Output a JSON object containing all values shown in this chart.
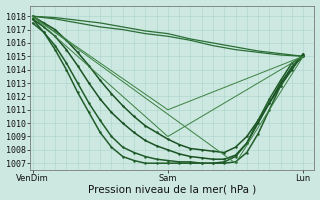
{
  "background_color": "#cce8e0",
  "grid_color": "#aad4cc",
  "ylabel_text": "Pression niveau de la mer( hPa )",
  "xtick_labels": [
    "VenDim",
    "Sam",
    "Lun"
  ],
  "xtick_positions": [
    0,
    48,
    96
  ],
  "ylim": [
    1006.5,
    1018.8
  ],
  "xlim": [
    -1,
    100
  ],
  "yticks": [
    1007,
    1008,
    1009,
    1010,
    1011,
    1012,
    1013,
    1014,
    1015,
    1016,
    1017,
    1018
  ],
  "lines": [
    {
      "x": [
        0,
        8,
        16,
        24,
        32,
        40,
        48,
        56,
        64,
        72,
        80,
        88,
        96
      ],
      "y": [
        1018.0,
        1017.8,
        1017.5,
        1017.2,
        1017.0,
        1016.7,
        1016.5,
        1016.2,
        1015.8,
        1015.5,
        1015.3,
        1015.1,
        1015.0
      ],
      "lw": 0.9,
      "marker": null,
      "ms": 0,
      "color": "#2a6e35"
    },
    {
      "x": [
        0,
        8,
        16,
        24,
        32,
        40,
        48,
        56,
        64,
        72,
        80,
        88,
        96
      ],
      "y": [
        1018.0,
        1017.9,
        1017.7,
        1017.5,
        1017.2,
        1016.9,
        1016.7,
        1016.3,
        1016.0,
        1015.7,
        1015.4,
        1015.2,
        1015.0
      ],
      "lw": 0.9,
      "marker": null,
      "ms": 0,
      "color": "#2a6e35"
    },
    {
      "x": [
        0,
        4,
        8,
        12,
        16,
        20,
        24,
        28,
        32,
        36,
        40,
        44,
        48,
        52,
        56,
        60,
        64,
        68,
        72,
        76,
        80,
        84,
        88,
        92,
        96
      ],
      "y": [
        1018.0,
        1017.5,
        1017.0,
        1016.2,
        1015.3,
        1014.3,
        1013.2,
        1012.2,
        1011.3,
        1010.5,
        1009.8,
        1009.3,
        1008.8,
        1008.4,
        1008.1,
        1008.0,
        1007.9,
        1007.8,
        1008.2,
        1009.0,
        1010.2,
        1011.5,
        1012.8,
        1014.0,
        1015.2
      ],
      "lw": 1.1,
      "marker": ".",
      "ms": 2.8,
      "color": "#1a5224"
    },
    {
      "x": [
        0,
        4,
        8,
        12,
        16,
        20,
        24,
        28,
        32,
        36,
        40,
        44,
        48,
        52,
        56,
        60,
        64,
        68,
        72,
        76,
        80,
        84,
        88,
        92,
        96
      ],
      "y": [
        1017.8,
        1017.2,
        1016.5,
        1015.5,
        1014.3,
        1013.0,
        1011.8,
        1010.8,
        1010.0,
        1009.3,
        1008.7,
        1008.3,
        1008.0,
        1007.7,
        1007.5,
        1007.4,
        1007.3,
        1007.3,
        1007.6,
        1008.5,
        1010.0,
        1011.5,
        1013.0,
        1014.2,
        1015.1
      ],
      "lw": 1.1,
      "marker": ".",
      "ms": 2.8,
      "color": "#1a5224"
    },
    {
      "x": [
        0,
        4,
        8,
        12,
        16,
        20,
        24,
        28,
        32,
        36,
        40,
        44,
        48,
        52,
        56,
        60,
        64,
        68,
        72,
        76,
        80,
        84,
        88,
        92,
        96
      ],
      "y": [
        1017.5,
        1016.8,
        1015.8,
        1014.5,
        1013.0,
        1011.5,
        1010.2,
        1009.0,
        1008.2,
        1007.8,
        1007.5,
        1007.3,
        1007.2,
        1007.1,
        1007.1,
        1007.0,
        1007.0,
        1007.1,
        1007.5,
        1008.5,
        1010.2,
        1011.8,
        1013.2,
        1014.5,
        1015.0
      ],
      "lw": 1.1,
      "marker": ".",
      "ms": 2.8,
      "color": "#205c2a"
    },
    {
      "x": [
        0,
        4,
        8,
        12,
        16,
        20,
        24,
        28,
        32,
        36,
        40,
        44,
        48,
        52,
        56,
        60,
        64,
        68,
        72,
        76,
        80,
        84,
        88,
        92,
        96
      ],
      "y": [
        1017.8,
        1016.8,
        1015.5,
        1014.0,
        1012.3,
        1010.8,
        1009.3,
        1008.2,
        1007.5,
        1007.2,
        1007.0,
        1007.0,
        1007.0,
        1007.0,
        1007.0,
        1007.0,
        1007.0,
        1007.0,
        1007.1,
        1007.8,
        1009.2,
        1011.0,
        1012.8,
        1014.2,
        1015.0
      ],
      "lw": 1.1,
      "marker": ".",
      "ms": 2.8,
      "color": "#205c2a"
    },
    {
      "x": [
        0,
        48,
        96
      ],
      "y": [
        1018.0,
        1009.0,
        1015.0
      ],
      "lw": 0.7,
      "marker": null,
      "ms": 0,
      "color": "#3a8040"
    },
    {
      "x": [
        0,
        48,
        96
      ],
      "y": [
        1018.0,
        1011.0,
        1015.0
      ],
      "lw": 0.7,
      "marker": null,
      "ms": 0,
      "color": "#3a8040"
    },
    {
      "x": [
        0,
        72,
        96
      ],
      "y": [
        1018.0,
        1007.0,
        1015.0
      ],
      "lw": 0.7,
      "marker": null,
      "ms": 0,
      "color": "#3a8040"
    }
  ],
  "spine_color": "#666666",
  "tick_fontsize": 6.0,
  "xlabel_fontsize": 7.5
}
